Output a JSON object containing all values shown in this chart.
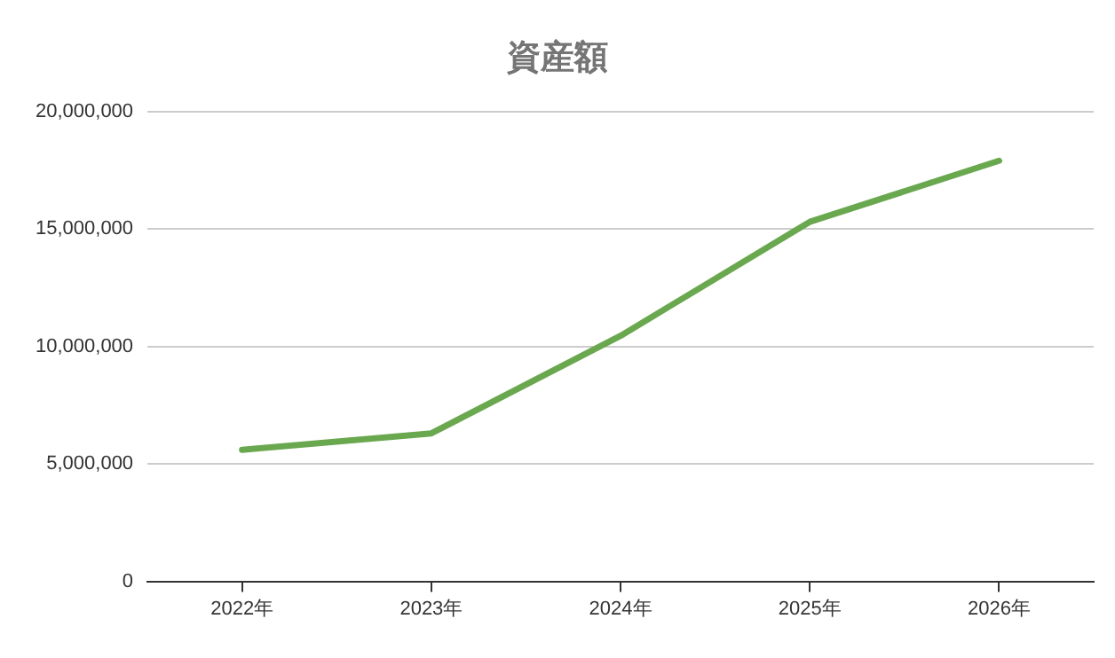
{
  "chart_data": {
    "type": "line",
    "title": "資産額",
    "categories": [
      "2022年",
      "2023年",
      "2024年",
      "2025年",
      "2026年"
    ],
    "series": [
      {
        "color": "#6aa84f",
        "values": [
          5600000,
          6300000,
          10450000,
          15300000,
          17900000
        ]
      }
    ],
    "ylim": [
      0,
      20000000
    ],
    "yticks": [
      {
        "value": 0,
        "label": "0"
      },
      {
        "value": 5000000,
        "label": "5,000,000"
      },
      {
        "value": 10000000,
        "label": "10,000,000"
      },
      {
        "value": 15000000,
        "label": "15,000,000"
      },
      {
        "value": 20000000,
        "label": "20,000,000"
      }
    ],
    "grid": "y",
    "legend": false,
    "marker": "none",
    "line_style": "solid"
  }
}
